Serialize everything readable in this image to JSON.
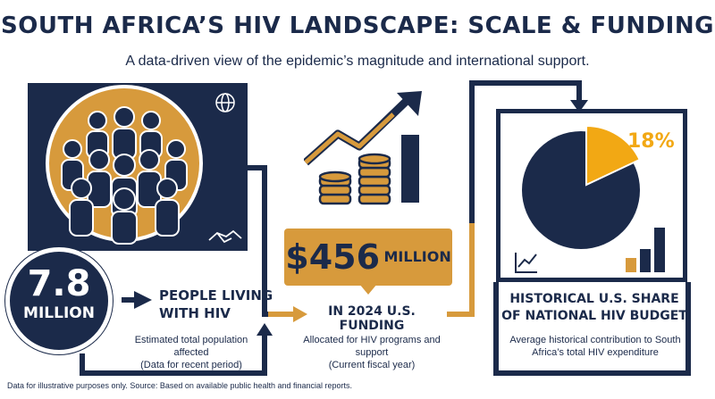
{
  "header": {
    "title": "SOUTH AFRICA’S HIV LANDSCAPE: SCALE & FUNDING",
    "subtitle": "A data-driven view of the epidemic’s magnitude and international support."
  },
  "population": {
    "value": "7.8",
    "unit": "MILLION",
    "label_line1": "PEOPLE LIVING",
    "label_line2": "WITH HIV",
    "note_line1": "Estimated total population affected",
    "note_line2": "(Data for recent period)"
  },
  "funding": {
    "amount": "$456",
    "unit": "MILLION",
    "label": "IN 2024 U.S. FUNDING",
    "note_line1": "Allocated for HIV programs and support",
    "note_line2": "(Current fiscal year)"
  },
  "share": {
    "percent_label": "18%",
    "percent_value": 18,
    "label_line1": "HISTORICAL U.S. SHARE",
    "label_line2": "OF NATIONAL HIV BUDGET",
    "note_line1": "Average historical contribution to South",
    "note_line2": "Africa’s total HIV expenditure"
  },
  "icons": [
    "globe-icon",
    "handshake-icon",
    "people-group-icon",
    "coin-stack-icon",
    "trend-arrow-icon",
    "pie-chart-icon",
    "line-chart-icon",
    "bar-chart-icon"
  ],
  "colors": {
    "navy": "#1b2a4a",
    "gold": "#d79a3c",
    "gold_bright": "#f2a814",
    "white": "#ffffff"
  },
  "footnote": "Data for illustrative purposes only. Source: Based on available public health and financial reports."
}
